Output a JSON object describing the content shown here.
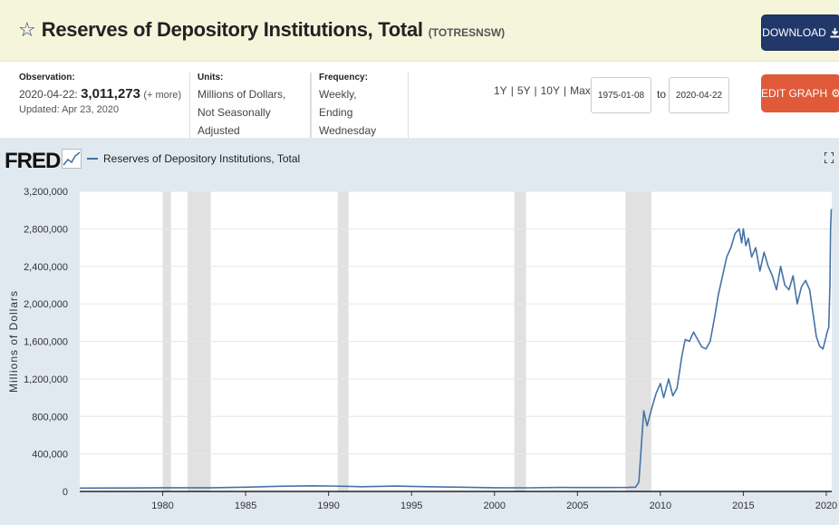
{
  "header": {
    "title": "Reserves of Depository Institutions, Total",
    "series_id": "(TOTRESNSW)",
    "download_label": "DOWNLOAD",
    "star_icon": "star-outline-icon",
    "download_icon": "download-icon"
  },
  "meta": {
    "observation_label": "Observation:",
    "observation_date": "2020-04-22:",
    "observation_value": "3,011,273",
    "observation_more": "(+ more)",
    "updated": "Updated: Apr 23, 2020",
    "units_label": "Units:",
    "units_line1": "Millions of Dollars,",
    "units_line2": "Not Seasonally Adjusted",
    "frequency_label": "Frequency:",
    "frequency_line1": "Weekly,",
    "frequency_line2": "Ending Wednesday"
  },
  "range": {
    "links": [
      "1Y",
      "5Y",
      "10Y",
      "Max"
    ],
    "start": "1975-01-08",
    "to_label": "to",
    "end": "2020-04-22",
    "edit_label": "EDIT GRAPH",
    "edit_icon": "gear-icon"
  },
  "graph": {
    "logo": "FRED",
    "legend": "Reserves of Depository Institutions, Total",
    "line_color": "#4572a7",
    "recession_color": "#e1e1e1"
  },
  "chart_data": {
    "type": "line",
    "title": "Reserves of Depository Institutions, Total",
    "xlabel": "",
    "ylabel": "Millions of Dollars",
    "xlim": [
      1975.0,
      2020.33
    ],
    "ylim": [
      0,
      3200000
    ],
    "y_ticks": [
      0,
      400000,
      800000,
      1200000,
      1600000,
      2000000,
      2400000,
      2800000,
      3200000
    ],
    "y_tick_labels": [
      "0",
      "400,000",
      "800,000",
      "1,200,000",
      "1,600,000",
      "2,000,000",
      "2,400,000",
      "2,800,000",
      "3,200,000"
    ],
    "x_ticks": [
      1980,
      1985,
      1990,
      1995,
      2000,
      2005,
      2010,
      2015,
      2020
    ],
    "x_tick_labels": [
      "1980",
      "1985",
      "1990",
      "1995",
      "2000",
      "2005",
      "2010",
      "2015",
      "2020"
    ],
    "grid": true,
    "recessions": [
      [
        1980.0,
        1980.5
      ],
      [
        1981.5,
        1982.9
      ],
      [
        1990.55,
        1991.2
      ],
      [
        2001.2,
        2001.9
      ],
      [
        2007.9,
        2009.45
      ]
    ],
    "series": [
      {
        "name": "Reserves of Depository Institutions, Total",
        "x": [
          1975.0,
          1978,
          1980,
          1983,
          1985,
          1987,
          1989,
          1990,
          1991,
          1992,
          1994,
          1996,
          1998,
          2000,
          2002,
          2004,
          2006,
          2008.0,
          2008.5,
          2008.7,
          2008.85,
          2009.0,
          2009.2,
          2009.5,
          2009.75,
          2010.0,
          2010.2,
          2010.5,
          2010.75,
          2011.0,
          2011.3,
          2011.5,
          2011.75,
          2012.0,
          2012.5,
          2012.75,
          2013.0,
          2013.25,
          2013.5,
          2013.75,
          2014.0,
          2014.25,
          2014.5,
          2014.75,
          2014.9,
          2015.0,
          2015.15,
          2015.3,
          2015.5,
          2015.75,
          2016.0,
          2016.25,
          2016.5,
          2016.75,
          2017.0,
          2017.25,
          2017.5,
          2017.75,
          2018.0,
          2018.25,
          2018.5,
          2018.75,
          2019.0,
          2019.2,
          2019.4,
          2019.6,
          2019.8,
          2019.95,
          2020.05,
          2020.15,
          2020.22,
          2020.26,
          2020.3
        ],
        "values": [
          36000,
          37000,
          40000,
          40000,
          45000,
          55000,
          60000,
          58000,
          55000,
          50000,
          57000,
          50000,
          45000,
          40000,
          39000,
          43000,
          42000,
          43000,
          45000,
          100000,
          480000,
          860000,
          700000,
          900000,
          1050000,
          1150000,
          1000000,
          1200000,
          1020000,
          1100000,
          1450000,
          1620000,
          1600000,
          1700000,
          1540000,
          1520000,
          1600000,
          1840000,
          2100000,
          2300000,
          2500000,
          2600000,
          2750000,
          2800000,
          2650000,
          2800000,
          2620000,
          2700000,
          2500000,
          2600000,
          2350000,
          2550000,
          2400000,
          2300000,
          2150000,
          2400000,
          2200000,
          2150000,
          2300000,
          2000000,
          2180000,
          2250000,
          2150000,
          1900000,
          1650000,
          1550000,
          1520000,
          1620000,
          1700000,
          1750000,
          2200000,
          2800000,
          3011273
        ]
      }
    ]
  }
}
